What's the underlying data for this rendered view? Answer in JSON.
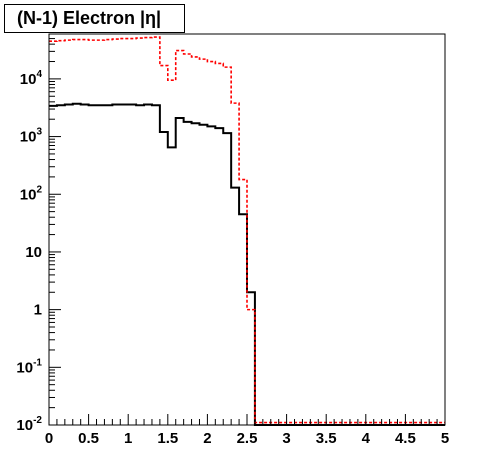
{
  "chart_data": {
    "type": "histogram",
    "title": "(N-1) Electron |η|",
    "xlabel": "",
    "ylabel": "",
    "xlim": [
      0,
      5
    ],
    "ylim": [
      0.01,
      60000
    ],
    "yscale": "log",
    "x_ticks": [
      {
        "value": 0,
        "label": "0"
      },
      {
        "value": 0.5,
        "label": "0.5"
      },
      {
        "value": 1,
        "label": "1"
      },
      {
        "value": 1.5,
        "label": "1.5"
      },
      {
        "value": 2,
        "label": "2"
      },
      {
        "value": 2.5,
        "label": "2.5"
      },
      {
        "value": 3,
        "label": "3"
      },
      {
        "value": 3.5,
        "label": "3.5"
      },
      {
        "value": 4,
        "label": "4"
      },
      {
        "value": 4.5,
        "label": "4.5"
      },
      {
        "value": 5,
        "label": "5"
      }
    ],
    "y_ticks": [
      {
        "value": 0.01,
        "base": "10",
        "exp": "-2"
      },
      {
        "value": 0.1,
        "base": "10",
        "exp": "-1"
      },
      {
        "value": 1,
        "base": "1",
        "exp": ""
      },
      {
        "value": 10,
        "base": "10",
        "exp": ""
      },
      {
        "value": 100,
        "base": "10",
        "exp": "2"
      },
      {
        "value": 1000,
        "base": "10",
        "exp": "3"
      },
      {
        "value": 10000,
        "base": "10",
        "exp": "4"
      }
    ],
    "bin_edges": [
      0.0,
      0.1,
      0.2,
      0.3,
      0.4,
      0.5,
      0.6,
      0.7,
      0.8,
      0.9,
      1.0,
      1.1,
      1.2,
      1.3,
      1.4,
      1.5,
      1.6,
      1.7,
      1.8,
      1.9,
      2.0,
      2.1,
      2.2,
      2.3,
      2.4,
      2.5,
      2.6,
      2.7,
      2.8,
      2.9,
      3.0,
      3.1,
      3.2,
      3.3,
      3.4,
      3.5,
      3.6,
      3.7,
      3.8,
      3.9,
      4.0,
      4.1,
      4.2,
      4.3,
      4.4,
      4.5,
      4.6,
      4.7,
      4.8,
      4.9,
      5.0
    ],
    "series": [
      {
        "color": "#000000",
        "style": "solid",
        "values": [
          3400,
          3500,
          3600,
          3700,
          3600,
          3500,
          3500,
          3500,
          3600,
          3600,
          3600,
          3500,
          3600,
          3500,
          1200,
          650,
          2100,
          1800,
          1700,
          1600,
          1500,
          1400,
          1150,
          130,
          45,
          2,
          0,
          0,
          0,
          0,
          0,
          0,
          0,
          0,
          0,
          0,
          0,
          0,
          0,
          0,
          0,
          0,
          0,
          0,
          0,
          0,
          0,
          0,
          0,
          0
        ]
      },
      {
        "color": "#ff0000",
        "style": "dashed",
        "values": [
          45000,
          46000,
          47000,
          48000,
          48000,
          47000,
          47000,
          48000,
          49000,
          50000,
          50000,
          51000,
          52000,
          53000,
          17000,
          9500,
          31000,
          27000,
          24000,
          22000,
          20000,
          18500,
          16000,
          3800,
          180,
          1,
          0.011,
          0.011,
          0.011,
          0.011,
          0.011,
          0.011,
          0.011,
          0.011,
          0.011,
          0.011,
          0.011,
          0.011,
          0.011,
          0.011,
          0.011,
          0.011,
          0.011,
          0.011,
          0.011,
          0.011,
          0.011,
          0.011,
          0.011,
          0.011
        ]
      }
    ],
    "grid": false,
    "legend": "none"
  }
}
